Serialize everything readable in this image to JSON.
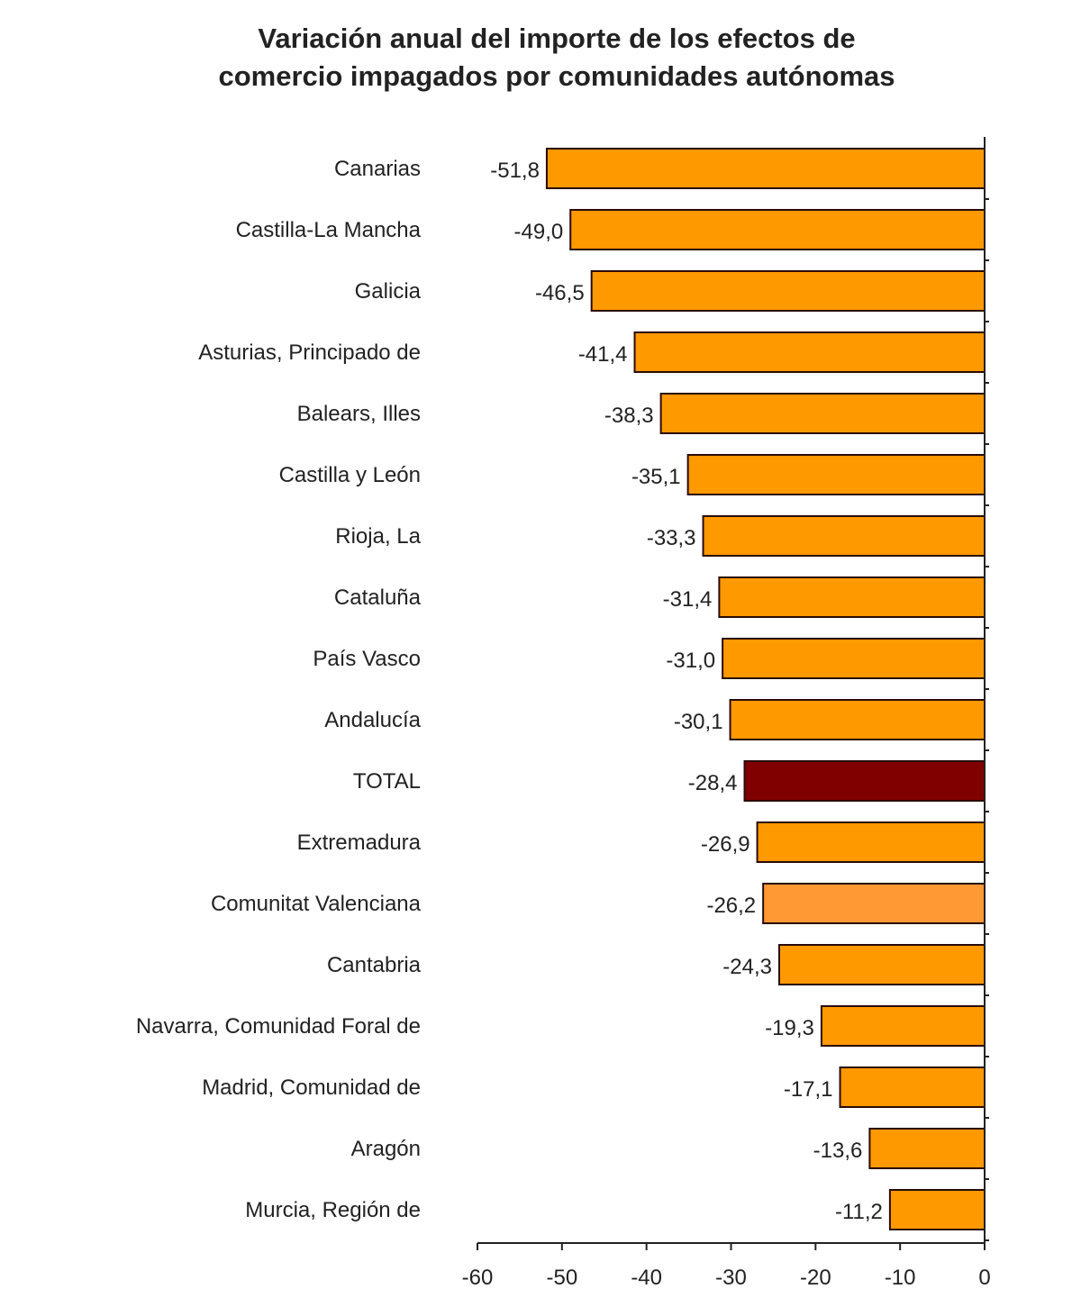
{
  "chart_data": {
    "type": "bar",
    "orientation": "horizontal",
    "title_lines": [
      "Variación anual del importe de los efectos de",
      "comercio impagados por comunidades autónomas"
    ],
    "categories": [
      "Canarias",
      "Castilla-La Mancha",
      "Galicia",
      "Asturias, Principado de",
      "Balears, Illes",
      "Castilla y León",
      "Rioja, La",
      "Cataluña",
      "País Vasco",
      "Andalucía",
      "TOTAL",
      "Extremadura",
      "Comunitat Valenciana",
      "Cantabria",
      "Navarra, Comunidad Foral de",
      "Madrid, Comunidad de",
      "Aragón",
      "Murcia, Región de"
    ],
    "values": [
      -51.8,
      -49.0,
      -46.5,
      -41.4,
      -38.3,
      -35.1,
      -33.3,
      -31.4,
      -31.0,
      -30.1,
      -28.4,
      -26.9,
      -26.2,
      -24.3,
      -19.3,
      -17.1,
      -13.6,
      -11.2
    ],
    "labels": [
      "-51,8",
      "-49,0",
      "-46,5",
      "-41,4",
      "-38,3",
      "-35,1",
      "-33,3",
      "-31,4",
      "-31,0",
      "-30,1",
      "-28,4",
      "-26,9",
      "-26,2",
      "-24,3",
      "-19,3",
      "-17,1",
      "-13,6",
      "-11,2"
    ],
    "colors": [
      "#ff9900",
      "#ff9900",
      "#ff9900",
      "#ff9900",
      "#ff9900",
      "#ff9900",
      "#ff9900",
      "#ff9900",
      "#ff9900",
      "#ff9900",
      "#800000",
      "#ff9900",
      "#ff9933",
      "#ff9900",
      "#ff9900",
      "#ff9900",
      "#ff9900",
      "#ff9900"
    ],
    "xlim": [
      -60,
      0
    ],
    "xticks": [
      -60,
      -50,
      -40,
      -30,
      -20,
      -10,
      0
    ],
    "xlabel": "",
    "ylabel": "",
    "grid": false,
    "legend": "none"
  }
}
